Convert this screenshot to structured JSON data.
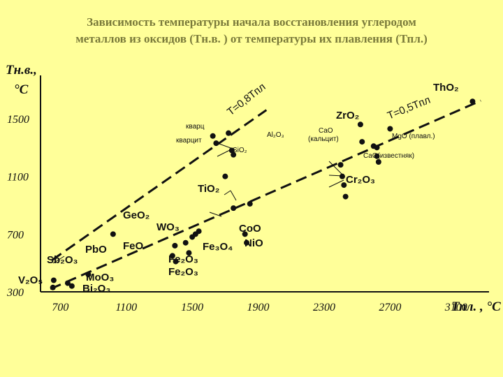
{
  "title": {
    "line1": "Зависимость температуры начала восстановления углеродом",
    "line2": "металлов из оксидов (Тн.в. ) от температуры их плавления (Тпл.)"
  },
  "chart_data": {
    "type": "scatter",
    "xlabel": "Тпл. , °С",
    "ylabel_line1": "Тн.в.,",
    "ylabel_line2": "°С",
    "xlim": [
      580,
      3300
    ],
    "ylim": [
      300,
      1800
    ],
    "x_ticks": [
      700,
      1100,
      1500,
      1900,
      2300,
      2700,
      3100
    ],
    "y_ticks": [
      300,
      700,
      1100,
      1500
    ],
    "grid": false,
    "lines": [
      {
        "label": "T=0,8Tпл",
        "slope": 0.8,
        "x_range": [
          650,
          1950
        ]
      },
      {
        "label": "T=0,5Tпл",
        "slope": 0.5,
        "x_range": [
          640,
          3250
        ]
      }
    ],
    "series": [
      {
        "x": [
          655,
          660,
          745,
          770,
          870,
          1020,
          1380,
          1395,
          1400,
          1460,
          1480,
          1500,
          1520,
          1540,
          1625,
          1645,
          1700,
          1720,
          1740,
          1750,
          1750,
          1820,
          1830,
          1850,
          2400,
          2410,
          2420,
          2430,
          2520,
          2530,
          2600,
          2620,
          2620,
          2630,
          2700,
          3200
        ],
        "y": [
          330,
          380,
          360,
          340,
          420,
          700,
          550,
          620,
          510,
          640,
          570,
          680,
          700,
          720,
          1380,
          1330,
          1100,
          1400,
          1280,
          1250,
          880,
          700,
          640,
          910,
          1180,
          1100,
          1040,
          960,
          1460,
          1340,
          1310,
          1300,
          1240,
          1200,
          1430,
          1620
        ]
      }
    ],
    "labels": [
      {
        "text": "Sb₂O₃"
      },
      {
        "text": "V₂O₅"
      },
      {
        "text": "PbO"
      },
      {
        "text": "MoO₃"
      },
      {
        "text": "Bi₂O₃"
      },
      {
        "text": "GeO₂"
      },
      {
        "text": "WO₃"
      },
      {
        "text": "FeO"
      },
      {
        "text": "Fe₂O₃"
      },
      {
        "text": "Fe₂O₃"
      },
      {
        "text": "Fe₃O₄"
      },
      {
        "text": "CoO"
      },
      {
        "text": "NiO"
      },
      {
        "text": "TiO₂"
      },
      {
        "text": "кварц"
      },
      {
        "text": "кварцит"
      },
      {
        "text": "SiO₂"
      },
      {
        "text": "Al₂O₃"
      },
      {
        "text": "CaO"
      },
      {
        "text": "(кальцит)"
      },
      {
        "text": "ZrO₂"
      },
      {
        "text": "MgO (плавл.)"
      },
      {
        "text": "CaO(известняк)"
      },
      {
        "text": "Cr₂O₃"
      },
      {
        "text": "ThO₂"
      }
    ]
  }
}
